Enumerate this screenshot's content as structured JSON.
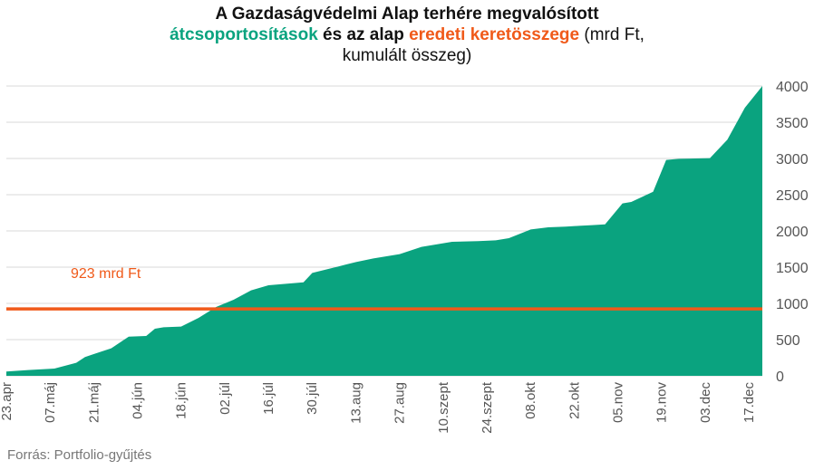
{
  "title": {
    "line1": "A Gazdaságvédelmi Alap terhére megvalósított",
    "line2_part1": "átcsoportosítások",
    "line2_part2": " és az alap ",
    "line2_part3": "eredeti keretösszege",
    "line2_part4": " (mrd Ft,",
    "line3": "kumulált  összeg)"
  },
  "source": "Forrás: Portfolio-gyűjtés",
  "colors": {
    "area": "#0aa37f",
    "reference": "#f05a1a",
    "grid": "#d9d9d9"
  },
  "chart_data": {
    "type": "area",
    "ylim": [
      0,
      4000
    ],
    "yticks": [
      0,
      500,
      1000,
      1500,
      2000,
      2500,
      3000,
      3500,
      4000
    ],
    "xticks": [
      "23.apr",
      "07.máj",
      "21.máj",
      "04.jún",
      "18.jún",
      "02.júl",
      "16.júl",
      "30.júl",
      "13.aug",
      "27.aug",
      "10.szept",
      "24.szept",
      "08.okt",
      "22.okt",
      "05.nov",
      "19.nov",
      "03.dec",
      "17.dec"
    ],
    "series": [
      {
        "x": [
          0,
          5,
          11,
          16,
          18,
          20,
          24,
          28,
          32,
          34,
          36,
          40,
          44,
          48,
          52,
          56,
          60,
          64,
          68,
          70,
          74,
          76,
          80,
          84,
          90,
          95,
          102,
          108,
          112,
          115,
          120,
          124,
          128,
          131,
          134,
          137,
          141,
          143,
          148,
          151,
          153,
          154,
          161,
          165,
          169,
          173
        ],
        "y": [
          60,
          80,
          100,
          180,
          260,
          300,
          380,
          540,
          550,
          650,
          670,
          680,
          800,
          950,
          1050,
          1180,
          1250,
          1270,
          1290,
          1420,
          1480,
          1510,
          1570,
          1620,
          1680,
          1780,
          1850,
          1860,
          1870,
          1900,
          2020,
          2050,
          2060,
          2070,
          2080,
          2090,
          2380,
          2400,
          2540,
          2980,
          2990,
          2995,
          3005,
          3260,
          3700,
          4000
        ]
      }
    ],
    "reference_line": {
      "value": 923,
      "label": "923 mrd Ft"
    },
    "grid": true
  }
}
